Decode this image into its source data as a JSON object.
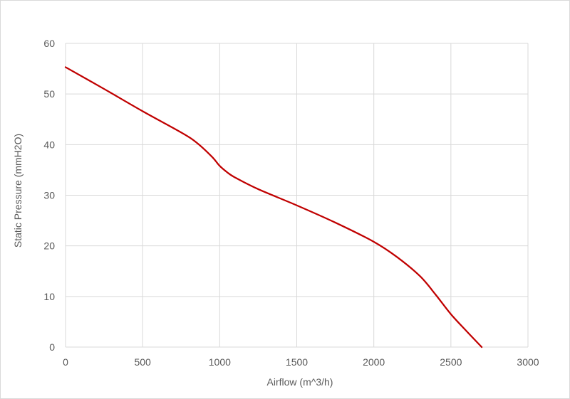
{
  "chart_data": {
    "type": "line",
    "title": "",
    "xlabel": "Airflow (m^3/h)",
    "ylabel": "Static Pressure (mmH2O)",
    "xlim": [
      0,
      3000
    ],
    "ylim": [
      0,
      60
    ],
    "x_ticks": [
      0,
      500,
      1000,
      1500,
      2000,
      2500,
      3000
    ],
    "y_ticks": [
      0,
      10,
      20,
      30,
      40,
      50,
      60
    ],
    "grid": true,
    "legend": "none",
    "series": [
      {
        "color": "#c00000",
        "x": [
          0,
          250,
          500,
          750,
          850,
          950,
          1000,
          1050,
          1100,
          1250,
          1500,
          1750,
          2000,
          2150,
          2300,
          2400,
          2500,
          2600,
          2700
        ],
        "y": [
          55.3,
          51,
          46.6,
          42.4,
          40.4,
          37.6,
          35.8,
          34.5,
          33.5,
          31.2,
          28.0,
          24.6,
          20.8,
          17.8,
          14.0,
          10.4,
          6.5,
          3.2,
          0
        ]
      }
    ]
  }
}
